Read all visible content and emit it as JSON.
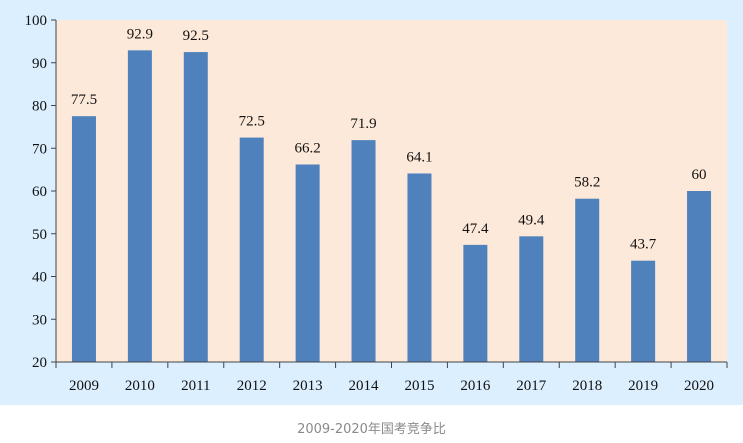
{
  "caption": "2009-2020年国考竞争比",
  "colors": {
    "frame": "#dcefff",
    "plot_background": "#fde9d9",
    "bar": "#4f81bd",
    "axis": "#444444"
  },
  "chart_data": {
    "type": "bar",
    "categories": [
      "2009",
      "2010",
      "2011",
      "2012",
      "2013",
      "2014",
      "2015",
      "2016",
      "2017",
      "2018",
      "2019",
      "2020"
    ],
    "values": [
      77.5,
      92.9,
      92.5,
      72.5,
      66.2,
      71.9,
      64.1,
      47.4,
      49.4,
      58.2,
      43.7,
      60
    ],
    "value_labels": [
      "77.5",
      "92.9",
      "92.5",
      "72.5",
      "66.2",
      "71.9",
      "64.1",
      "47.4",
      "49.4",
      "58.2",
      "43.7",
      "60"
    ],
    "ylim": [
      20,
      100
    ],
    "yticks": [
      "20",
      "30",
      "40",
      "50",
      "60",
      "70",
      "80",
      "90",
      "100"
    ],
    "grid": false,
    "legend": "none"
  }
}
